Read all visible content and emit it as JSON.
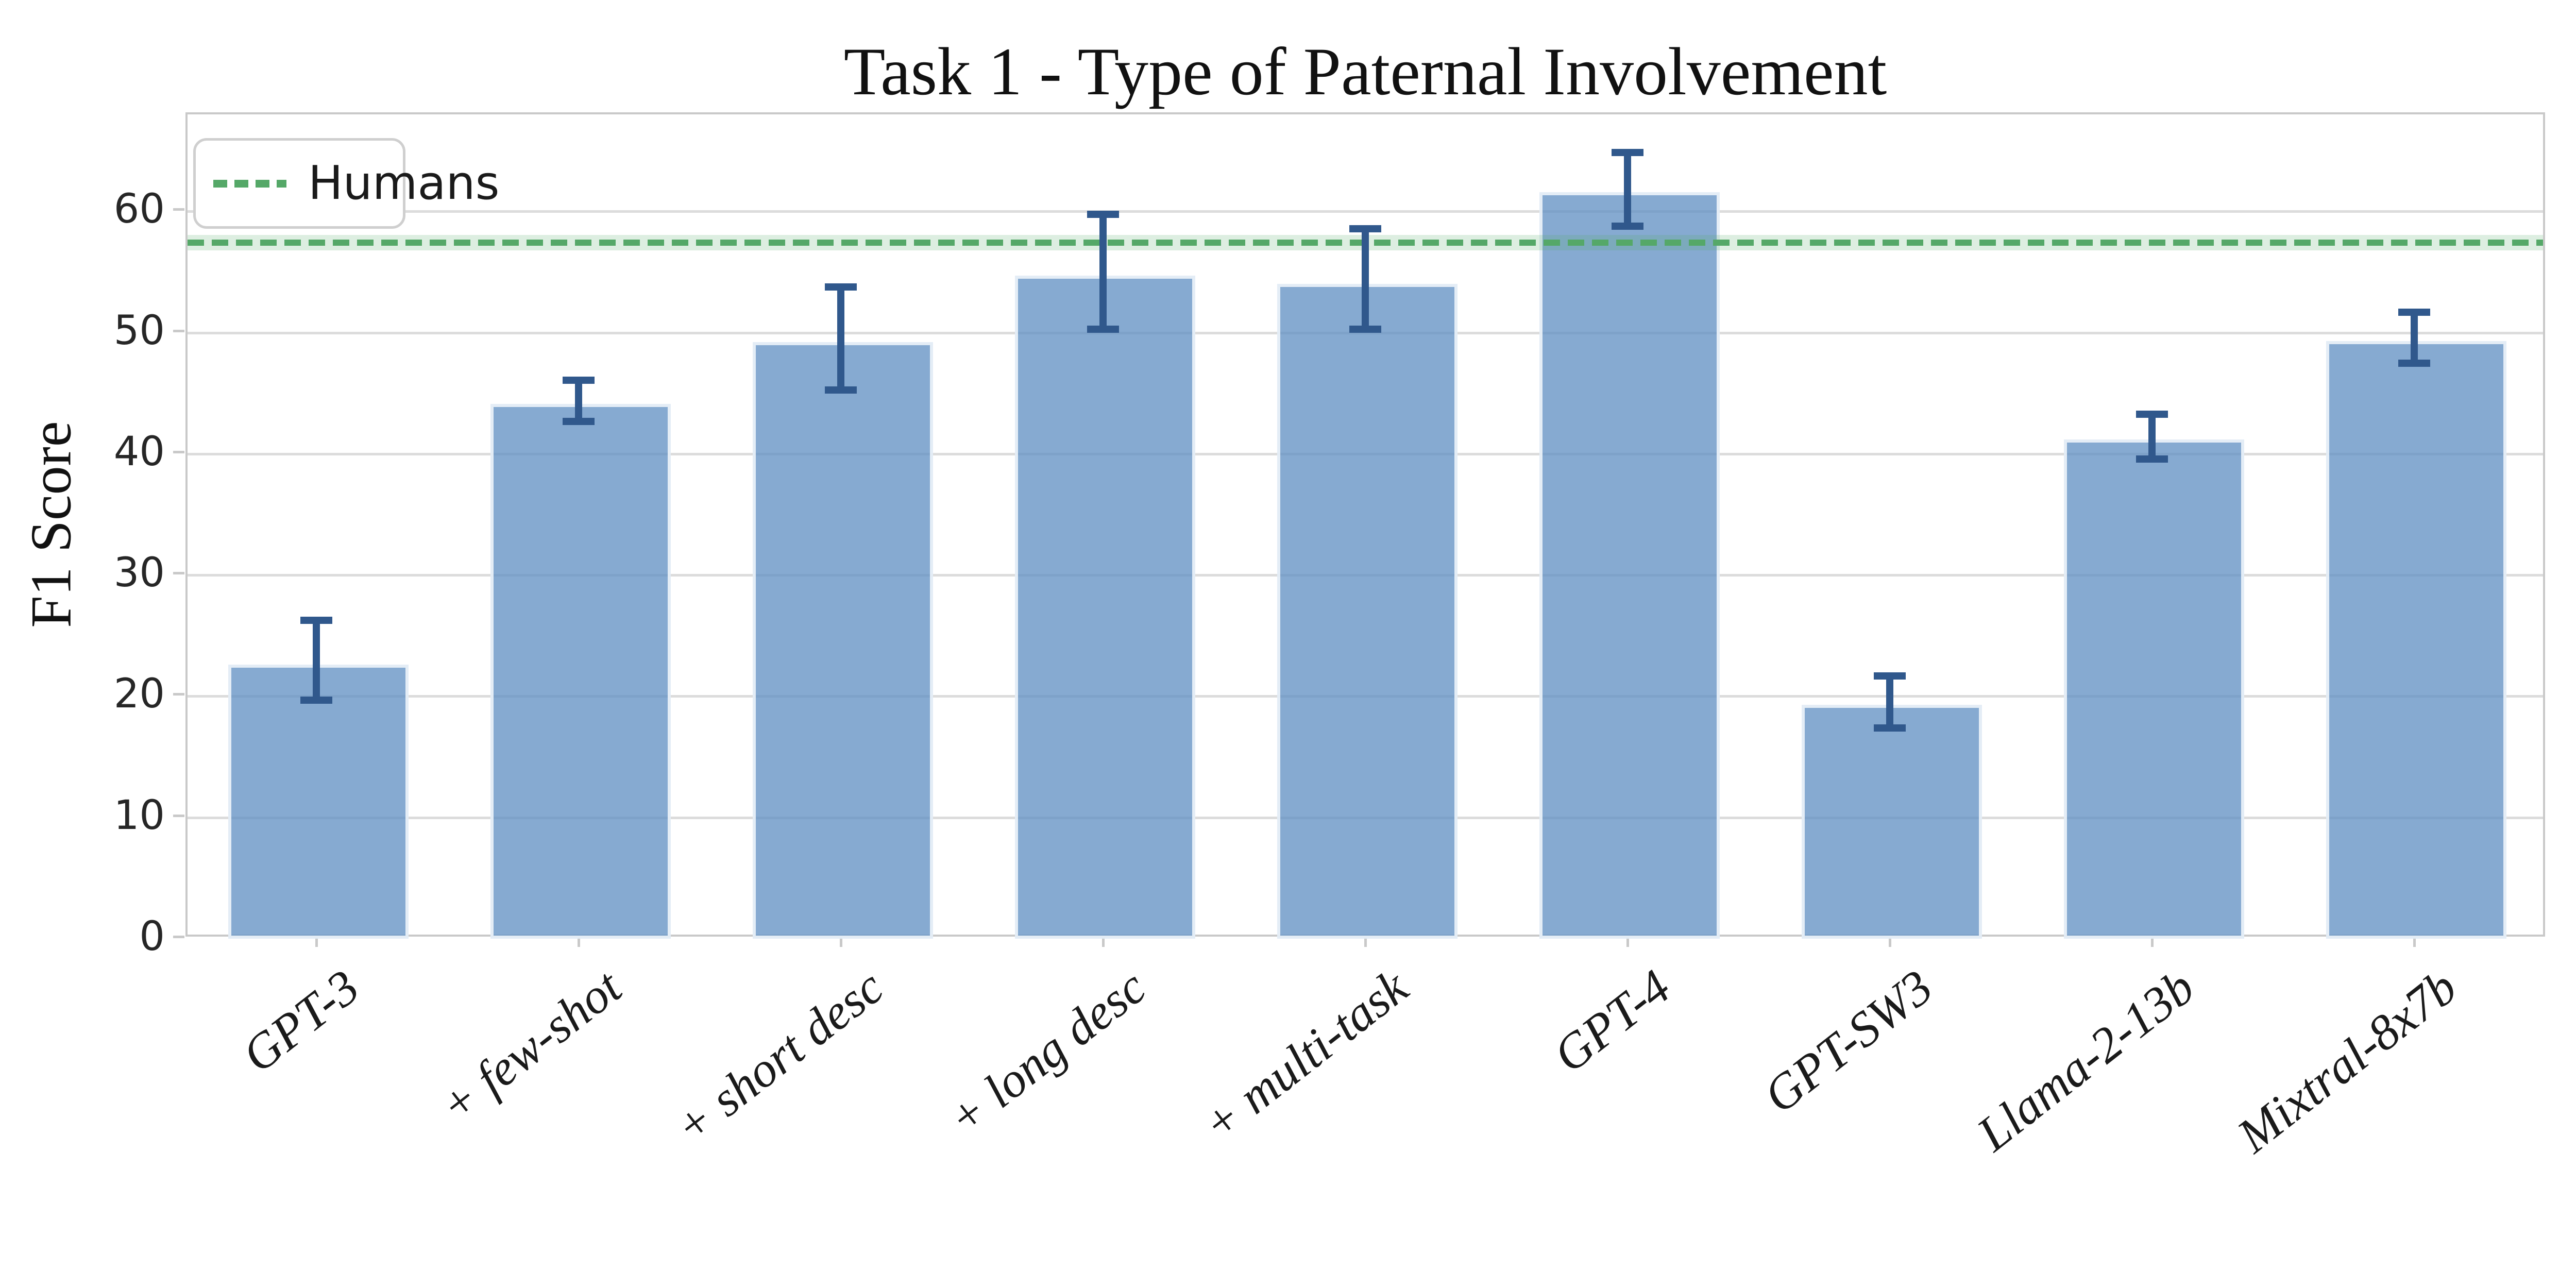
{
  "title": "Task 1 - Type of Paternal Involvement",
  "ylabel": "F1 Score",
  "legend": {
    "label": "Humans"
  },
  "chart_data": {
    "type": "bar",
    "title": "Task 1 - Type of Paternal Involvement",
    "xlabel": "",
    "ylabel": "F1 Score",
    "categories": [
      "GPT-3",
      "+ few-shot",
      "+ short desc",
      "+ long desc",
      "+ multi-task",
      "GPT-4",
      "GPT-SW3",
      "Llama-2-13b",
      "Mixtral-8x7b"
    ],
    "values": [
      22.6,
      44.1,
      49.2,
      54.7,
      54.0,
      61.6,
      19.3,
      41.2,
      49.3
    ],
    "error_low": [
      19.5,
      42.5,
      45.1,
      50.1,
      50.1,
      58.6,
      17.2,
      39.4,
      47.3
    ],
    "error_high": [
      26.1,
      45.9,
      53.6,
      59.6,
      58.4,
      64.7,
      21.5,
      43.1,
      51.5
    ],
    "reference_line": {
      "label": "Humans",
      "value": 57.4,
      "style": "dashed",
      "color": "#55a868"
    },
    "yticks": [
      0,
      10,
      20,
      30,
      40,
      50,
      60
    ],
    "ylim": [
      0,
      68
    ],
    "grid": true,
    "legend_position": "upper left",
    "colors": {
      "bar_fill": "#8badd3",
      "bar_edge": "#e9f0f8",
      "error_bar": "#30588c",
      "reference_line": "#55a868",
      "reference_band": "#d8ecdc",
      "gridline": "#dcdcdc",
      "spine": "#c9c9c9",
      "text": "#111111"
    }
  }
}
